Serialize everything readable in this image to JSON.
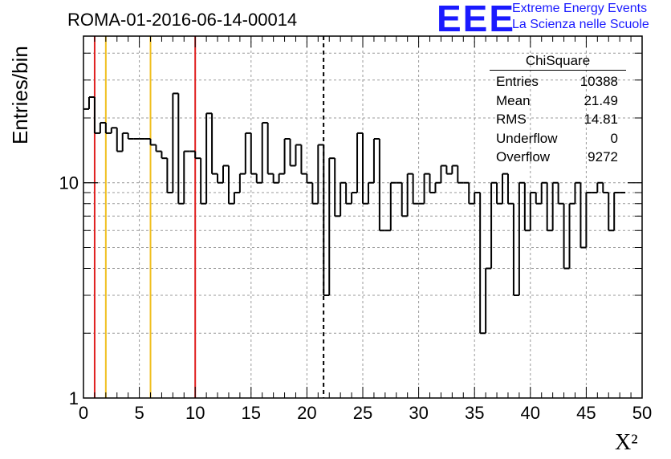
{
  "header": {
    "title": "ROMA-01-2016-06-14-00014"
  },
  "logo": {
    "mark": "EEE",
    "line1": "Extreme Energy Events",
    "line2": "La Scienza nelle Scuole"
  },
  "stats": {
    "title": "ChiSquare",
    "rows": [
      {
        "label": "Entries",
        "value": "10388"
      },
      {
        "label": "Mean",
        "value": "21.49"
      },
      {
        "label": "RMS",
        "value": "14.81"
      },
      {
        "label": "Underflow",
        "value": "0"
      },
      {
        "label": "Overflow",
        "value": "9272"
      }
    ]
  },
  "chart_data": {
    "type": "histogram",
    "title": "ROMA-01-2016-06-14-00014",
    "xlabel": "X²",
    "ylabel": "Entries/bin",
    "xlim": [
      0,
      50
    ],
    "ylim": [
      1,
      48
    ],
    "yscale": "log",
    "grid": true,
    "x_ticks": [
      0,
      5,
      10,
      15,
      20,
      25,
      30,
      35,
      40,
      45,
      50
    ],
    "y_ticks": [
      1,
      10
    ],
    "bin_width": 0.5,
    "bin_start": 0,
    "values": [
      22,
      25,
      17,
      19,
      17,
      18,
      14,
      17,
      16,
      16,
      16,
      16,
      15,
      14,
      13,
      9,
      26,
      8,
      14,
      14,
      13,
      8,
      21,
      11,
      10,
      12,
      8,
      9,
      11,
      17,
      11,
      10,
      19,
      11,
      10,
      11,
      16,
      12,
      15,
      11,
      10,
      8,
      15,
      3,
      13,
      7,
      10,
      8,
      9,
      17,
      8,
      10,
      16,
      6,
      6,
      10,
      10,
      7,
      11,
      8,
      8,
      11,
      9,
      10,
      12,
      11,
      12,
      10,
      10,
      8,
      9,
      2,
      4,
      10,
      8,
      11,
      8,
      3,
      10,
      6,
      9,
      8,
      10,
      6,
      10,
      8,
      4,
      8,
      10,
      5,
      9,
      9,
      10,
      9,
      6,
      9,
      9
    ],
    "reference_lines": [
      {
        "x": 1,
        "color": "#e02020",
        "style": "solid"
      },
      {
        "x": 2,
        "color": "#f0c020",
        "style": "solid"
      },
      {
        "x": 6,
        "color": "#f0c020",
        "style": "solid"
      },
      {
        "x": 10,
        "color": "#e02020",
        "style": "solid"
      },
      {
        "x": 21.49,
        "color": "#000000",
        "style": "dashed"
      }
    ]
  }
}
